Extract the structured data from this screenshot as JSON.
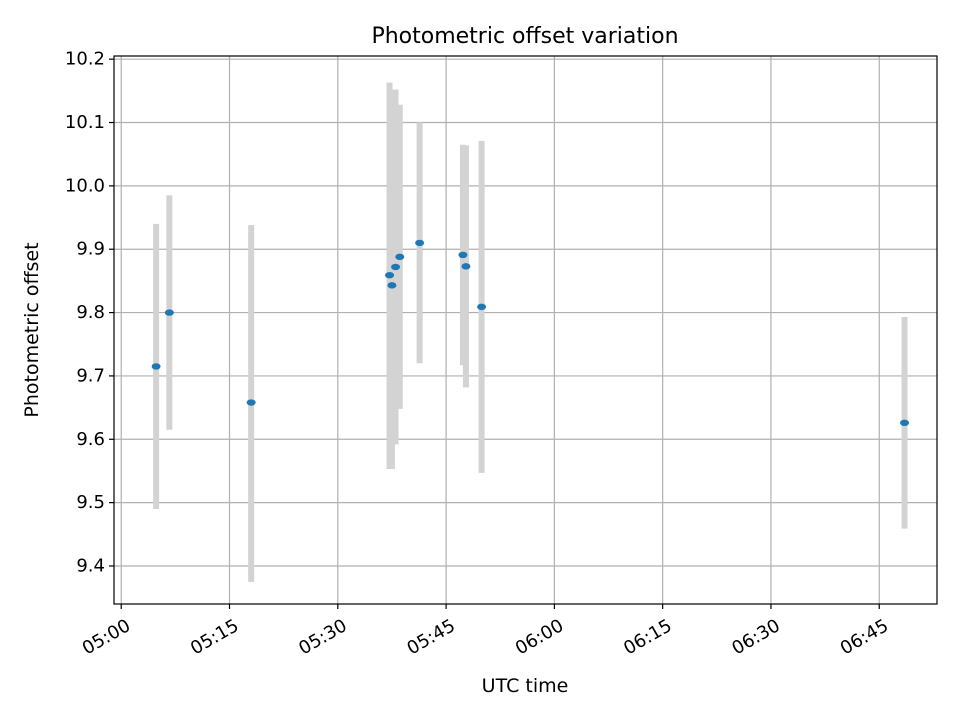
{
  "chart_data": {
    "type": "scatter",
    "title": "Photometric offset variation",
    "xlabel": "UTC time",
    "ylabel": "Photometric offset",
    "grid": true,
    "xlim": [
      "04:59",
      "06:53"
    ],
    "ylim": [
      9.34,
      10.205
    ],
    "x_tick_labels": [
      "05:00",
      "05:15",
      "05:30",
      "05:45",
      "06:00",
      "06:15",
      "06:30",
      "06:45"
    ],
    "y_tick_labels": [
      "9.4",
      "9.5",
      "9.6",
      "9.7",
      "9.8",
      "9.9",
      "10.0",
      "10.1",
      "10.2"
    ],
    "marker_color": "#1f77b4",
    "errorbar_color": "#d3d3d3",
    "points": [
      {
        "t": "05:04:50",
        "y": 9.715,
        "lo": 9.49,
        "hi": 9.94
      },
      {
        "t": "05:06:40",
        "y": 9.8,
        "lo": 9.615,
        "hi": 9.985
      },
      {
        "t": "05:18:00",
        "y": 9.658,
        "lo": 9.375,
        "hi": 9.938
      },
      {
        "t": "05:37:10",
        "y": 9.859,
        "lo": 9.553,
        "hi": 10.163
      },
      {
        "t": "05:37:30",
        "y": 9.843,
        "lo": 9.553,
        "hi": 10.133
      },
      {
        "t": "05:38:00",
        "y": 9.872,
        "lo": 9.592,
        "hi": 10.152
      },
      {
        "t": "05:38:35",
        "y": 9.888,
        "lo": 9.648,
        "hi": 10.128
      },
      {
        "t": "05:41:20",
        "y": 9.91,
        "lo": 9.72,
        "hi": 10.1
      },
      {
        "t": "05:47:20",
        "y": 9.891,
        "lo": 9.717,
        "hi": 10.065
      },
      {
        "t": "05:47:45",
        "y": 9.873,
        "lo": 9.682,
        "hi": 10.064
      },
      {
        "t": "05:49:55",
        "y": 9.809,
        "lo": 9.547,
        "hi": 10.071
      },
      {
        "t": "06:48:30",
        "y": 9.626,
        "lo": 9.459,
        "hi": 9.793
      }
    ]
  }
}
